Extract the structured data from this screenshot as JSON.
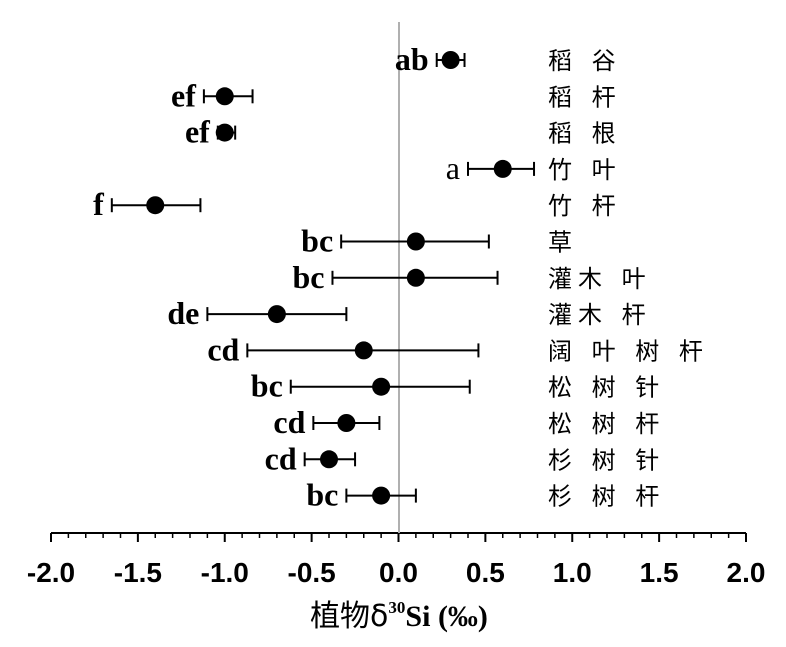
{
  "chart_data": {
    "type": "scatter",
    "orientation": "horizontal-errorbar",
    "x_axis": {
      "label_prefix": "植物δ",
      "label_superscript": "30",
      "label_suffix": "Si (‰)",
      "xlim": [
        -2.0,
        2.0
      ],
      "major_ticks": [
        -2.0,
        -1.5,
        -1.0,
        -0.5,
        0.0,
        0.5,
        1.0,
        1.5,
        2.0
      ],
      "tick_labels": [
        "-2.0",
        "-1.5",
        "-1.0",
        "-0.5",
        "0.0",
        "0.5",
        "1.0",
        "1.5",
        "2.0"
      ],
      "minor_step": 0.1
    },
    "reference_line_x": 0.0,
    "points": [
      {
        "category": "稻 谷",
        "value": 0.3,
        "low": 0.22,
        "high": 0.38,
        "group": "ab",
        "bold": true
      },
      {
        "category": "稻 杆",
        "value": -1.0,
        "low": -1.12,
        "high": -0.84,
        "group": "ef",
        "bold": true
      },
      {
        "category": "稻 根",
        "value": -1.0,
        "low": -1.04,
        "high": -0.94,
        "group": "ef",
        "bold": true
      },
      {
        "category": "竹 叶",
        "value": 0.6,
        "low": 0.4,
        "high": 0.78,
        "group": "a",
        "bold": false
      },
      {
        "category": "竹 杆",
        "value": -1.4,
        "low": -1.65,
        "high": -1.14,
        "group": "f",
        "bold": true
      },
      {
        "category": "草",
        "value": 0.1,
        "low": -0.33,
        "high": 0.52,
        "group": "bc",
        "bold": true
      },
      {
        "category": "灌木 叶",
        "value": 0.1,
        "low": -0.38,
        "high": 0.57,
        "group": "bc",
        "bold": true
      },
      {
        "category": "灌木 杆",
        "value": -0.7,
        "low": -1.1,
        "high": -0.3,
        "group": "de",
        "bold": true
      },
      {
        "category": "阔 叶 树 杆",
        "value": -0.2,
        "low": -0.87,
        "high": 0.46,
        "group": "cd",
        "bold": true
      },
      {
        "category": "松 树 针",
        "value": -0.1,
        "low": -0.62,
        "high": 0.41,
        "group": "bc",
        "bold": true
      },
      {
        "category": "松 树 杆",
        "value": -0.3,
        "low": -0.49,
        "high": -0.11,
        "group": "cd",
        "bold": true
      },
      {
        "category": "杉 树 针",
        "value": -0.4,
        "low": -0.54,
        "high": -0.25,
        "group": "cd",
        "bold": true
      },
      {
        "category": "杉 树 杆",
        "value": -0.1,
        "low": -0.3,
        "high": 0.1,
        "group": "bc",
        "bold": true
      }
    ],
    "marker_color": "#000000",
    "grid": false,
    "legend": "none"
  }
}
